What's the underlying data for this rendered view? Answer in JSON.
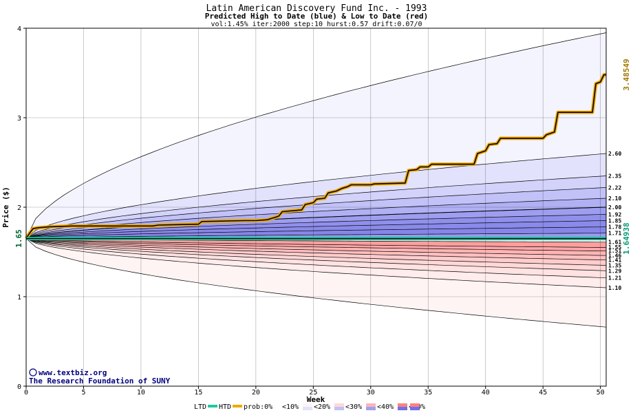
{
  "chart_data": {
    "type": "area",
    "title": "Latin American Discovery Fund Inc. - 1993",
    "subtitle": "Predicted High to Date (blue) &  Low to Date (red)",
    "params_line": "vol:1.45% iter:2000 step:10 hurst:0.57 drift:0.07/0",
    "xlabel": "Week",
    "ylabel": "Price ($)",
    "xlim": [
      0,
      50.5
    ],
    "ylim": [
      0,
      4
    ],
    "x_ticks": [
      0,
      5,
      10,
      15,
      20,
      25,
      30,
      35,
      40,
      45,
      50
    ],
    "x_tick_labels": [
      "0",
      "5",
      "10",
      "15",
      "20",
      "25",
      "30",
      "35",
      "40",
      "45",
      "50"
    ],
    "y_ticks": [
      0,
      1,
      2,
      3,
      4
    ],
    "y_tick_labels": [
      "0",
      "1",
      "2",
      "3",
      "4"
    ],
    "grid": true,
    "start_price": 1.65,
    "start_price_label": "1.65",
    "end_high_label": "3.48549",
    "end_low_label": "1.64938",
    "colors": {
      "title": "#000000",
      "htd_line": "#000000",
      "htd_outline": "#f0a800",
      "ltd_line": "#20c8a0",
      "start_label": "#006633",
      "end_high_label": "#a07800",
      "end_low_label": "#009977",
      "credit": "#000080"
    },
    "upper_band_ends": [
      3.95,
      2.6,
      2.35,
      2.22,
      2.1,
      2.0,
      1.92,
      1.85,
      1.78,
      1.71,
      1.64
    ],
    "lower_band_ends": [
      1.61,
      1.55,
      1.51,
      1.46,
      1.41,
      1.35,
      1.29,
      1.21,
      1.1,
      0.66
    ],
    "upper_band_fills": [
      "#f4f4fe",
      "#e2e2fc",
      "#d2d2fa",
      "#c2c2f8",
      "#b0b0f4",
      "#9e9ef0",
      "#9090ec",
      "#8a8aea",
      "#8686e8",
      "#9a9af0"
    ],
    "lower_band_fills": [
      "#ff9e9e",
      "#ffa8a8",
      "#ffb4b4",
      "#ffc0c0",
      "#ffcccc",
      "#ffd8d8",
      "#ffe2e2",
      "#ffecec",
      "#fff4f4"
    ],
    "right_labels": [
      "2.60",
      "2.35",
      "2.22",
      "2.10",
      "2.00",
      "1.92",
      "1.85",
      "1.78",
      "1.71",
      "1.61",
      "1.55",
      "1.51",
      "1.46",
      "1.41",
      "1.35",
      "1.29",
      "1.21",
      "1.10"
    ],
    "right_label_values": [
      2.6,
      2.35,
      2.22,
      2.1,
      2.0,
      1.92,
      1.85,
      1.78,
      1.71,
      1.61,
      1.555,
      1.515,
      1.46,
      1.41,
      1.35,
      1.29,
      1.21,
      1.1
    ],
    "htd_series": {
      "name": "HTD",
      "x": [
        0,
        0.3,
        0.6,
        1,
        2,
        4,
        7,
        10,
        11,
        11.5,
        15,
        15.3,
        19,
        20,
        21,
        21.5,
        22,
        22.3,
        24,
        24.3,
        25,
        25.3,
        26,
        26.3,
        27,
        27.5,
        28,
        28.3,
        30,
        30.3,
        33,
        33.3,
        34,
        34.3,
        35,
        35.3,
        39,
        39.3,
        40,
        40.3,
        41,
        41.3,
        45,
        45.3,
        46,
        46.3,
        49.3,
        49.6,
        50,
        50.3,
        50.5
      ],
      "y": [
        1.65,
        1.71,
        1.76,
        1.77,
        1.78,
        1.79,
        1.79,
        1.79,
        1.79,
        1.8,
        1.81,
        1.84,
        1.85,
        1.85,
        1.86,
        1.88,
        1.9,
        1.95,
        1.97,
        2.03,
        2.05,
        2.09,
        2.1,
        2.16,
        2.18,
        2.21,
        2.23,
        2.25,
        2.25,
        2.26,
        2.27,
        2.41,
        2.42,
        2.45,
        2.45,
        2.48,
        2.48,
        2.6,
        2.63,
        2.7,
        2.71,
        2.77,
        2.77,
        2.81,
        2.84,
        3.06,
        3.06,
        3.38,
        3.4,
        3.48,
        3.48
      ]
    },
    "ltd_series": {
      "name": "LTD",
      "x": [
        0,
        0.3,
        50.5
      ],
      "y": [
        1.65,
        1.649,
        1.649
      ]
    },
    "credit_line1": "www.textbiz.org",
    "credit_line2": "The Research Foundation of SUNY",
    "copyright_symbol": "©",
    "legend": {
      "placement": "bottom",
      "ltd_label": "LTD",
      "htd_label": "HTD",
      "prob_label": "prob:0%",
      "items": [
        "<10%",
        "<20%",
        "<30%",
        "<40%",
        "<50%"
      ],
      "swatch_colors": [
        [
          "#ffffff",
          "#f4f4fe"
        ],
        [
          "#fff4f4",
          "#e2e2fc"
        ],
        [
          "#ffd8d8",
          "#c2c2f8"
        ],
        [
          "#ffb4b4",
          "#a0a0f2"
        ],
        [
          "#ff8080",
          "#7070e8"
        ]
      ],
      "prefix_swatch": [
        "#ffffff",
        "#ffffff"
      ]
    }
  }
}
